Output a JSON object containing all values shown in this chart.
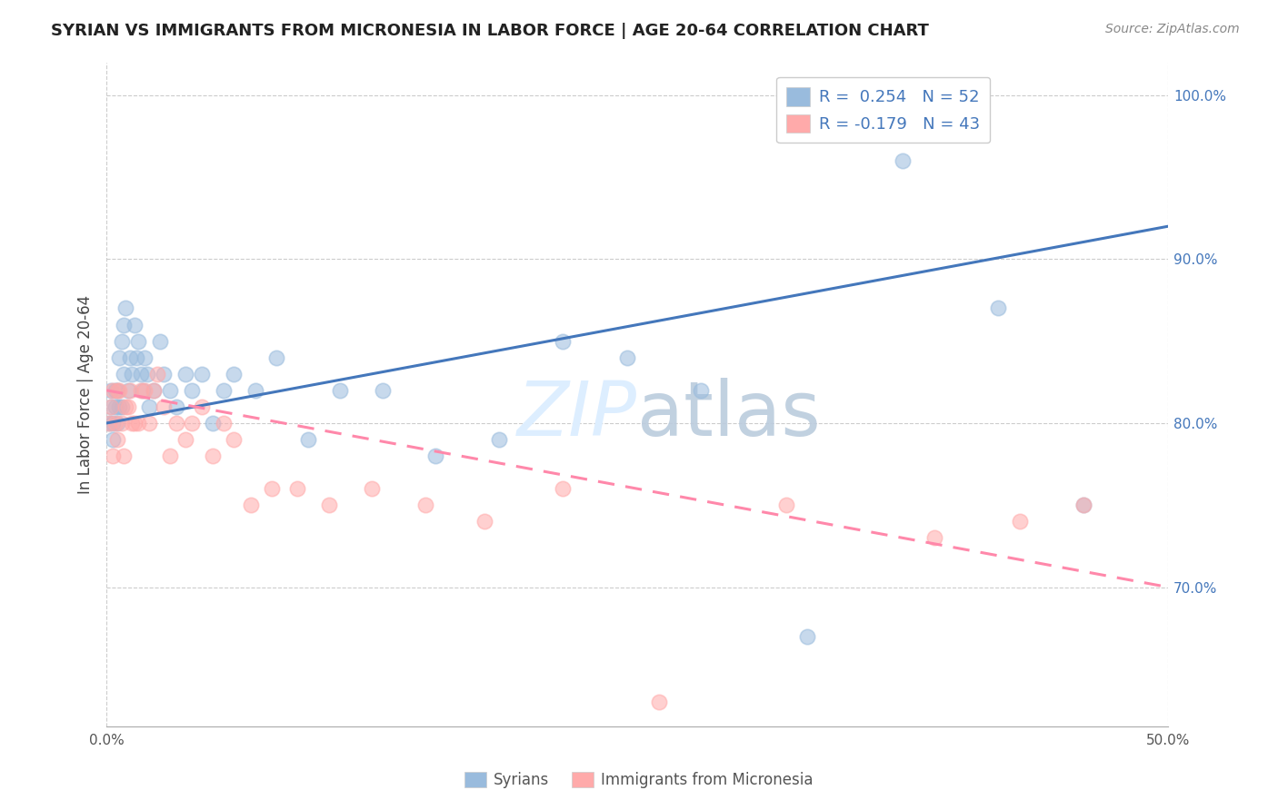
{
  "title": "SYRIAN VS IMMIGRANTS FROM MICRONESIA IN LABOR FORCE | AGE 20-64 CORRELATION CHART",
  "source": "Source: ZipAtlas.com",
  "ylabel": "In Labor Force | Age 20-64",
  "xlim": [
    0.0,
    0.5
  ],
  "ylim": [
    0.615,
    1.02
  ],
  "yticks_right": [
    0.7,
    0.8,
    0.9,
    1.0
  ],
  "ytick_labels_right": [
    "70.0%",
    "80.0%",
    "90.0%",
    "100.0%"
  ],
  "blue_color": "#99BBDD",
  "pink_color": "#FFAAAA",
  "blue_line_color": "#4477BB",
  "pink_line_color": "#FF88AA",
  "text_color_blue": "#4477BB",
  "watermark_color": "#DDEEFF",
  "syrians_x": [
    0.001,
    0.002,
    0.002,
    0.003,
    0.003,
    0.004,
    0.004,
    0.005,
    0.005,
    0.006,
    0.006,
    0.007,
    0.007,
    0.008,
    0.008,
    0.009,
    0.01,
    0.011,
    0.012,
    0.013,
    0.014,
    0.015,
    0.016,
    0.017,
    0.018,
    0.019,
    0.02,
    0.022,
    0.025,
    0.027,
    0.03,
    0.033,
    0.037,
    0.04,
    0.045,
    0.05,
    0.055,
    0.06,
    0.07,
    0.08,
    0.095,
    0.11,
    0.13,
    0.155,
    0.185,
    0.215,
    0.245,
    0.28,
    0.33,
    0.375,
    0.42,
    0.46
  ],
  "syrians_y": [
    0.8,
    0.82,
    0.81,
    0.79,
    0.8,
    0.81,
    0.82,
    0.8,
    0.82,
    0.81,
    0.84,
    0.85,
    0.81,
    0.83,
    0.86,
    0.87,
    0.82,
    0.84,
    0.83,
    0.86,
    0.84,
    0.85,
    0.83,
    0.82,
    0.84,
    0.83,
    0.81,
    0.82,
    0.85,
    0.83,
    0.82,
    0.81,
    0.83,
    0.82,
    0.83,
    0.8,
    0.82,
    0.83,
    0.82,
    0.84,
    0.79,
    0.82,
    0.82,
    0.78,
    0.79,
    0.85,
    0.84,
    0.82,
    0.67,
    0.96,
    0.87,
    0.75
  ],
  "micro_x": [
    0.001,
    0.002,
    0.003,
    0.003,
    0.004,
    0.005,
    0.005,
    0.006,
    0.007,
    0.008,
    0.009,
    0.01,
    0.011,
    0.012,
    0.013,
    0.015,
    0.016,
    0.018,
    0.02,
    0.022,
    0.024,
    0.027,
    0.03,
    0.033,
    0.037,
    0.04,
    0.045,
    0.05,
    0.055,
    0.06,
    0.068,
    0.078,
    0.09,
    0.105,
    0.125,
    0.15,
    0.178,
    0.215,
    0.26,
    0.32,
    0.39,
    0.43,
    0.46
  ],
  "micro_y": [
    0.8,
    0.81,
    0.78,
    0.82,
    0.8,
    0.82,
    0.79,
    0.82,
    0.8,
    0.78,
    0.81,
    0.81,
    0.82,
    0.8,
    0.8,
    0.8,
    0.82,
    0.82,
    0.8,
    0.82,
    0.83,
    0.81,
    0.78,
    0.8,
    0.79,
    0.8,
    0.81,
    0.78,
    0.8,
    0.79,
    0.75,
    0.76,
    0.76,
    0.75,
    0.76,
    0.75,
    0.74,
    0.76,
    0.63,
    0.75,
    0.73,
    0.74,
    0.75
  ],
  "blue_trend_x": [
    0.0,
    0.5
  ],
  "blue_trend_y": [
    0.8,
    0.92
  ],
  "pink_trend_x": [
    0.0,
    0.5
  ],
  "pink_trend_y": [
    0.82,
    0.7
  ]
}
